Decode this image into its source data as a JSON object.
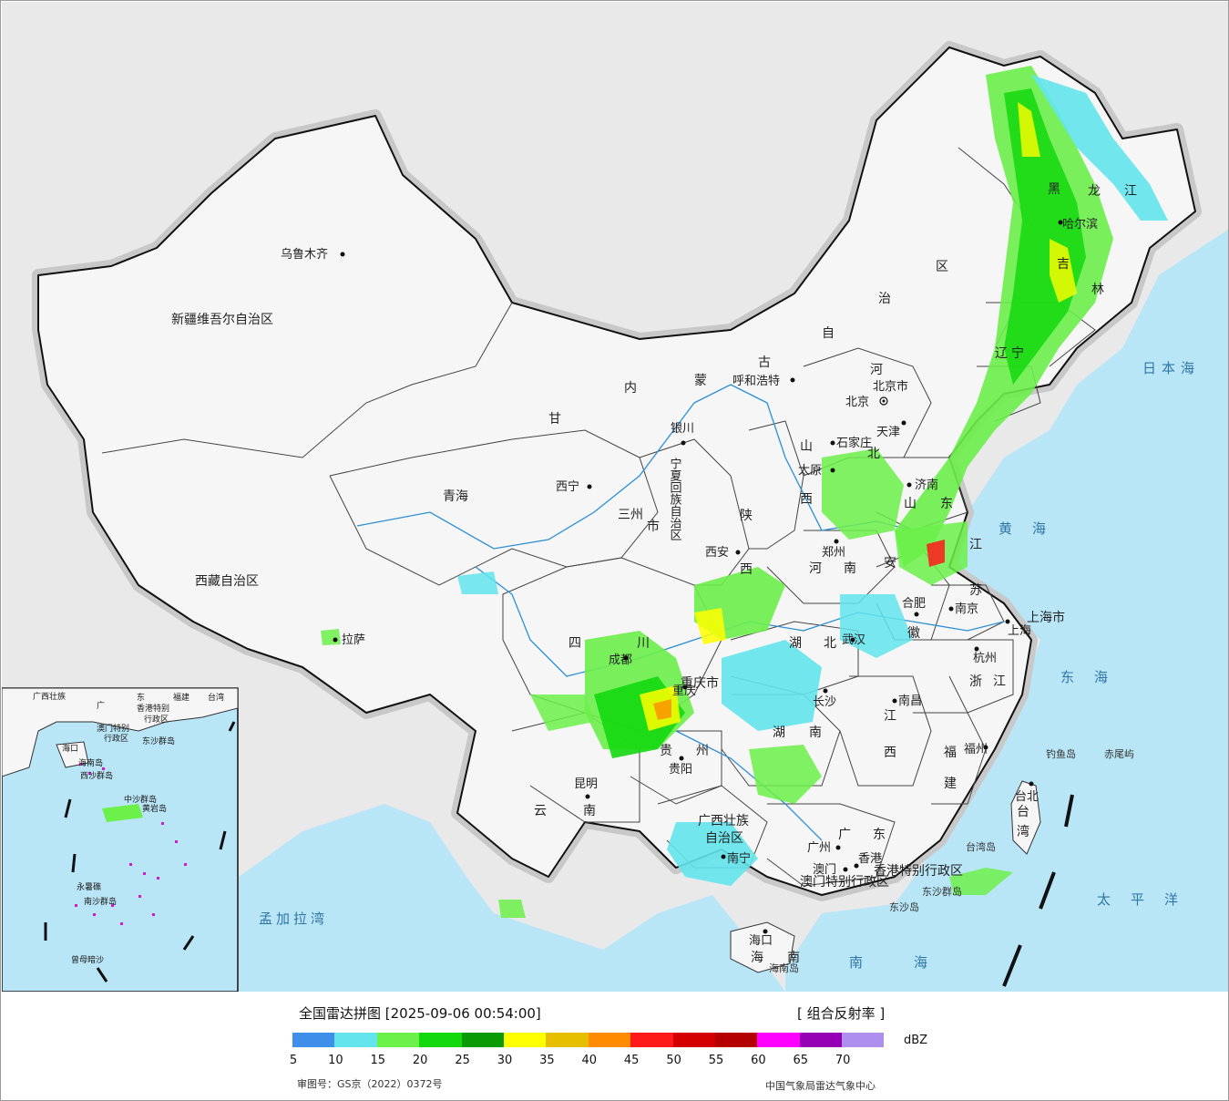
{
  "map": {
    "provinces": [
      {
        "name": "新疆维吾尔自治区"
      },
      {
        "name": "西藏自治区"
      },
      {
        "name": "青海"
      },
      {
        "name": "甘"
      },
      {
        "name": "内"
      },
      {
        "name": "蒙"
      },
      {
        "name": "古"
      },
      {
        "name": "自"
      },
      {
        "name": "治"
      },
      {
        "name": "区"
      },
      {
        "name": "黑"
      },
      {
        "name": "龙"
      },
      {
        "name": "江"
      },
      {
        "name": "吉"
      },
      {
        "name": "林"
      },
      {
        "name": "辽"
      },
      {
        "name": "宁"
      },
      {
        "name": "河"
      },
      {
        "name": "北"
      },
      {
        "name": "山"
      },
      {
        "name": "西"
      },
      {
        "name": "山"
      },
      {
        "name": "东"
      },
      {
        "name": "陕"
      },
      {
        "name": "西"
      },
      {
        "name": "河"
      },
      {
        "name": "南"
      },
      {
        "name": "安"
      },
      {
        "name": "徽"
      },
      {
        "name": "江"
      },
      {
        "name": "苏"
      },
      {
        "name": "上海市"
      },
      {
        "name": "浙"
      },
      {
        "name": "江"
      },
      {
        "name": "四"
      },
      {
        "name": "川"
      },
      {
        "name": "重庆市"
      },
      {
        "name": "湖"
      },
      {
        "name": "北"
      },
      {
        "name": "湖"
      },
      {
        "name": "南"
      },
      {
        "name": "江"
      },
      {
        "name": "西"
      },
      {
        "name": "福"
      },
      {
        "name": "建"
      },
      {
        "name": "贵"
      },
      {
        "name": "州"
      },
      {
        "name": "云"
      },
      {
        "name": "南"
      },
      {
        "name": "广西壮族"
      },
      {
        "name": "自治区"
      },
      {
        "name": "广"
      },
      {
        "name": "东"
      },
      {
        "name": "海"
      },
      {
        "name": "南"
      },
      {
        "name": "台"
      },
      {
        "name": "湾"
      },
      {
        "name": "三州"
      },
      {
        "name": "市"
      },
      {
        "name": "宁夏回族自治区"
      },
      {
        "name": "香港特别行政区"
      },
      {
        "name": "澳门特别行政区"
      }
    ],
    "cities": [
      {
        "name": "乌鲁木齐"
      },
      {
        "name": "拉萨"
      },
      {
        "name": "西宁"
      },
      {
        "name": "银川"
      },
      {
        "name": "呼和浩特"
      },
      {
        "name": "北京"
      },
      {
        "name": "天津"
      },
      {
        "name": "石家庄"
      },
      {
        "name": "太原"
      },
      {
        "name": "济南"
      },
      {
        "name": "郑州"
      },
      {
        "name": "西安"
      },
      {
        "name": "合肥"
      },
      {
        "name": "南京"
      },
      {
        "name": "上海"
      },
      {
        "name": "杭州"
      },
      {
        "name": "武汉"
      },
      {
        "name": "长沙"
      },
      {
        "name": "南昌"
      },
      {
        "name": "福州"
      },
      {
        "name": "台北"
      },
      {
        "name": "成都"
      },
      {
        "name": "重庆"
      },
      {
        "name": "贵阳"
      },
      {
        "name": "昆明"
      },
      {
        "name": "南宁"
      },
      {
        "name": "广州"
      },
      {
        "name": "澳门"
      },
      {
        "name": "香港"
      },
      {
        "name": "海口"
      },
      {
        "name": "哈尔滨"
      },
      {
        "name": "北京市"
      }
    ],
    "seas": [
      {
        "name": "日本海"
      },
      {
        "name": "黄海"
      },
      {
        "name": "东海"
      },
      {
        "name": "太平洋"
      },
      {
        "name": "南海"
      },
      {
        "name": "孟加拉湾"
      }
    ],
    "islands": [
      {
        "name": "钓鱼岛"
      },
      {
        "name": "赤尾屿"
      },
      {
        "name": "台湾岛"
      },
      {
        "name": "东沙群岛"
      },
      {
        "name": "东沙岛"
      },
      {
        "name": "海南岛"
      }
    ],
    "inset_labels": [
      {
        "name": "广西壮族"
      },
      {
        "name": "广"
      },
      {
        "name": "东"
      },
      {
        "name": "福建"
      },
      {
        "name": "台湾"
      },
      {
        "name": "澳门特别"
      },
      {
        "name": "香港特别"
      },
      {
        "name": "行政区"
      },
      {
        "name": "行政区"
      },
      {
        "name": "海口"
      },
      {
        "name": "海南岛"
      },
      {
        "name": "西沙群岛"
      },
      {
        "name": "中沙群岛"
      },
      {
        "name": "黄岩岛"
      },
      {
        "name": "南沙群岛"
      },
      {
        "name": "永暑礁"
      },
      {
        "name": "曾母暗沙"
      },
      {
        "name": "东沙群岛"
      }
    ]
  },
  "legend": {
    "title": "全国雷达拼图 [2025-09-06 00:54:00]",
    "product": "[ 组合反射率 ]",
    "unit": "dBZ",
    "colors": [
      "#3d8fe9",
      "#63e4ec",
      "#6cf04a",
      "#13d80e",
      "#0a9a06",
      "#ffff00",
      "#e6c000",
      "#ff8c00",
      "#ff1a1a",
      "#d40000",
      "#b40000",
      "#ff00ff",
      "#9600b4",
      "#ae8fed"
    ],
    "ticks": [
      "5",
      "10",
      "15",
      "20",
      "25",
      "30",
      "35",
      "40",
      "45",
      "50",
      "55",
      "60",
      "65",
      "70"
    ],
    "approval": "审图号：GS京（2022）0372号",
    "organization": "中国气象局雷达气象中心"
  }
}
